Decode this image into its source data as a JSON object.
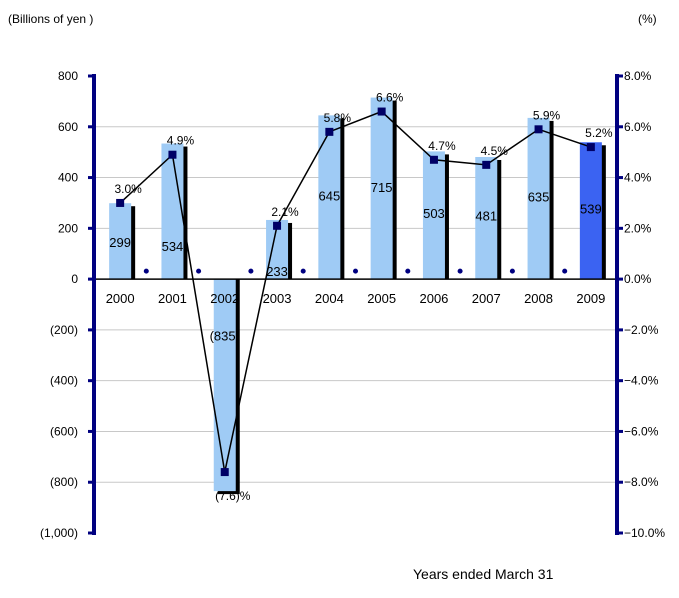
{
  "chart_data": {
    "type": "bar+line",
    "ylabel_left": "(Billions of yen )",
    "ylabel_right": "(%)",
    "xlabel": "Years ended March 31",
    "categories": [
      "2000",
      "2001",
      "2002",
      "2003",
      "2004",
      "2005",
      "2006",
      "2007",
      "2008",
      "2009"
    ],
    "bar_series": {
      "values": [
        299,
        534,
        -835,
        233,
        645,
        715,
        503,
        481,
        635,
        539
      ],
      "labels": [
        "299",
        "534",
        "(835)",
        "233",
        "645",
        "715",
        "503",
        "481",
        "635",
        "539"
      ]
    },
    "line_series": {
      "values": [
        3.0,
        4.9,
        -7.6,
        2.1,
        5.8,
        6.6,
        4.7,
        4.5,
        5.9,
        5.2
      ],
      "labels": [
        "3.0%",
        "4.9%",
        "(7.6)%",
        "2.1%",
        "5.8%",
        "6.6%",
        "4.7%",
        "4.5%",
        "5.9%",
        "5.2%"
      ]
    },
    "left_axis": {
      "ylim": [
        -1000,
        800
      ],
      "ticks": [
        800,
        600,
        400,
        200,
        0,
        -200,
        -400,
        -600,
        -800,
        -1000
      ],
      "tick_labels": [
        "800",
        "600",
        "400",
        "200",
        "0",
        "(200)",
        "(400)",
        "(600)",
        "(800)",
        "(1,000)"
      ]
    },
    "right_axis": {
      "ylim": [
        -10,
        8
      ],
      "ticks": [
        8,
        6,
        4,
        2,
        0,
        -2,
        -4,
        -6,
        -8,
        -10
      ],
      "tick_labels": [
        "8.0%",
        "6.0%",
        "4.0%",
        "2.0%",
        "0.0%",
        "−2.0%",
        "−4.0%",
        "−6.0%",
        "−8.0%",
        "−10.0%"
      ]
    },
    "grid": true,
    "colors": {
      "bar": "#9fcbf5",
      "bar_highlight": "#3b63f2",
      "bar_shadow": "#000000",
      "axis": "#000080",
      "line": "#000000",
      "marker": "#000066",
      "grid": "#c8c8c8"
    },
    "highlight_index": 9
  }
}
